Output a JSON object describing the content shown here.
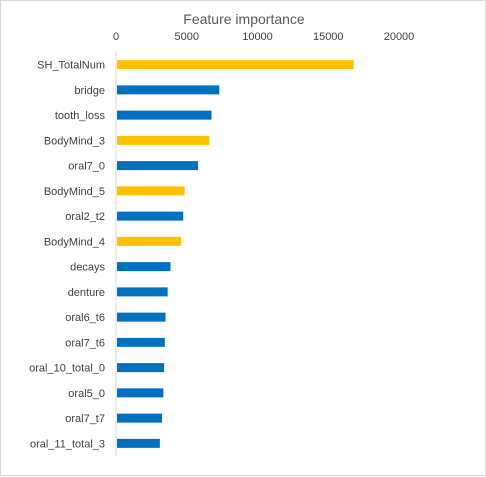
{
  "chart_data": {
    "type": "bar",
    "orientation": "horizontal",
    "title": "Feature importance",
    "xlabel": "",
    "ylabel": "",
    "xlim": [
      0,
      20000
    ],
    "xticks": [
      0,
      5000,
      10000,
      15000,
      20000
    ],
    "xtick_labels": [
      "0",
      "5000",
      "10000",
      "15000",
      "20000"
    ],
    "axis_position": "top",
    "grid": false,
    "categories": [
      "SH_TotalNum",
      "bridge",
      "tooth_loss",
      "BodyMind_3",
      "oral7_0",
      "BodyMind_5",
      "oral2_t2",
      "BodyMind_4",
      "decays",
      "denture",
      "oral6_t6",
      "oral7_t6",
      "oral_10_total_0",
      "oral5_0",
      "oral7_t7",
      "oral_11_total_3"
    ],
    "values": [
      16800,
      7300,
      6750,
      6600,
      5800,
      4850,
      4750,
      4600,
      3850,
      3650,
      3500,
      3450,
      3400,
      3350,
      3250,
      3100
    ],
    "bar_colors": [
      "#FFC000",
      "#0070C0",
      "#0070C0",
      "#FFC000",
      "#0070C0",
      "#FFC000",
      "#0070C0",
      "#FFC000",
      "#0070C0",
      "#0070C0",
      "#0070C0",
      "#0070C0",
      "#0070C0",
      "#0070C0",
      "#0070C0",
      "#0070C0"
    ]
  }
}
